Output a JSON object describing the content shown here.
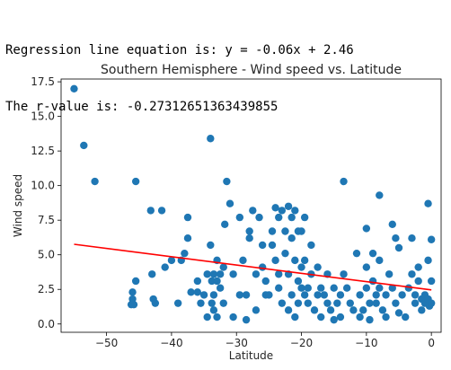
{
  "output": {
    "line1": "Regression line equation is: y = -0.06x + 2.46",
    "line2": "The r-value is: -0.27312651363439855"
  },
  "chart_data": {
    "type": "scatter",
    "title": "Southern Hemisphere - Wind speed vs. Latitude",
    "xlabel": "Latitude",
    "ylabel": "Wind speed",
    "xlim": [
      -57,
      1.5
    ],
    "ylim": [
      -0.6,
      17.7
    ],
    "xticks": [
      -50,
      -40,
      -30,
      -20,
      -10,
      0
    ],
    "xtick_labels": [
      "−50",
      "−40",
      "−30",
      "−20",
      "−10",
      "0"
    ],
    "yticks": [
      0.0,
      2.5,
      5.0,
      7.5,
      10.0,
      12.5,
      15.0,
      17.5
    ],
    "ytick_labels": [
      "0.0",
      "2.5",
      "5.0",
      "7.5",
      "10.0",
      "12.5",
      "15.0",
      "17.5"
    ],
    "grid": false,
    "point_color": "#1f77b4",
    "line_color": "#ff0000",
    "regression": {
      "slope": -0.06,
      "intercept": 2.46,
      "x_range": [
        -55,
        0
      ]
    },
    "points": [
      [
        -55,
        17.0
      ],
      [
        -53.5,
        12.9
      ],
      [
        -51.8,
        10.3
      ],
      [
        -45.5,
        10.3
      ],
      [
        -43.2,
        8.2
      ],
      [
        -41.5,
        8.2
      ],
      [
        -45.5,
        3.1
      ],
      [
        -46,
        2.3
      ],
      [
        -46,
        1.8
      ],
      [
        -46.2,
        1.4
      ],
      [
        -45.8,
        1.4
      ],
      [
        -43,
        3.6
      ],
      [
        -42.8,
        1.8
      ],
      [
        -42.5,
        1.5
      ],
      [
        -41,
        4.1
      ],
      [
        -40,
        4.6
      ],
      [
        -39,
        1.5
      ],
      [
        -38.5,
        4.6
      ],
      [
        -38,
        5.1
      ],
      [
        -37.5,
        7.7
      ],
      [
        -37.5,
        6.2
      ],
      [
        -37,
        2.3
      ],
      [
        -36,
        3.1
      ],
      [
        -36,
        2.3
      ],
      [
        -35.5,
        1.5
      ],
      [
        -35,
        2.1
      ],
      [
        -34.5,
        3.6
      ],
      [
        -34.5,
        0.5
      ],
      [
        -34,
        5.7
      ],
      [
        -34,
        13.4
      ],
      [
        -33.8,
        3.1
      ],
      [
        -33.8,
        1.5
      ],
      [
        -33.5,
        3.6
      ],
      [
        -33.5,
        2.1
      ],
      [
        -33.5,
        1.0
      ],
      [
        -33,
        4.6
      ],
      [
        -33,
        3.1
      ],
      [
        -33,
        0.5
      ],
      [
        -32.5,
        3.6
      ],
      [
        -32.5,
        2.6
      ],
      [
        -32,
        1.5
      ],
      [
        -32,
        4.1
      ],
      [
        -31.8,
        7.2
      ],
      [
        -31.5,
        10.3
      ],
      [
        -31,
        8.7
      ],
      [
        -30.5,
        3.6
      ],
      [
        -30.5,
        0.5
      ],
      [
        -29.5,
        7.7
      ],
      [
        -29.5,
        2.1
      ],
      [
        -29,
        4.6
      ],
      [
        -28.5,
        2.1
      ],
      [
        -28.5,
        0.3
      ],
      [
        -28,
        6.7
      ],
      [
        -28,
        6.2
      ],
      [
        -27.5,
        8.2
      ],
      [
        -27,
        3.6
      ],
      [
        -27,
        1.0
      ],
      [
        -26.5,
        7.7
      ],
      [
        -26,
        5.7
      ],
      [
        -26,
        4.1
      ],
      [
        -25.5,
        3.1
      ],
      [
        -25.5,
        2.1
      ],
      [
        -25,
        2.1
      ],
      [
        -24.5,
        5.7
      ],
      [
        -24.5,
        6.7
      ],
      [
        -24,
        4.6
      ],
      [
        -24,
        8.4
      ],
      [
        -23.5,
        7.7
      ],
      [
        -23.5,
        3.6
      ],
      [
        -23.5,
        2.6
      ],
      [
        -23,
        1.5
      ],
      [
        -23,
        8.2
      ],
      [
        -22.5,
        6.7
      ],
      [
        -22.5,
        5.1
      ],
      [
        -22,
        8.5
      ],
      [
        -22,
        3.6
      ],
      [
        -22,
        1.0
      ],
      [
        -21.5,
        7.7
      ],
      [
        -21.5,
        6.2
      ],
      [
        -21.5,
        2.1
      ],
      [
        -21,
        4.6
      ],
      [
        -21,
        8.2
      ],
      [
        -21,
        0.5
      ],
      [
        -20.5,
        6.7
      ],
      [
        -20.5,
        3.1
      ],
      [
        -20.5,
        1.5
      ],
      [
        -20,
        6.7
      ],
      [
        -20,
        4.1
      ],
      [
        -20,
        2.6
      ],
      [
        -19.5,
        7.7
      ],
      [
        -19.5,
        4.6
      ],
      [
        -19.5,
        2.1
      ],
      [
        -19,
        2.6
      ],
      [
        -19,
        1.5
      ],
      [
        -18.5,
        5.7
      ],
      [
        -18.5,
        3.6
      ],
      [
        -18,
        1.0
      ],
      [
        -17.5,
        2.1
      ],
      [
        -17.5,
        4.1
      ],
      [
        -17,
        2.6
      ],
      [
        -17,
        0.5
      ],
      [
        -16.5,
        2.1
      ],
      [
        -16,
        3.6
      ],
      [
        -16,
        1.5
      ],
      [
        -15.5,
        1.0
      ],
      [
        -15,
        2.6
      ],
      [
        -15,
        0.3
      ],
      [
        -14.5,
        1.5
      ],
      [
        -14,
        2.1
      ],
      [
        -14,
        0.5
      ],
      [
        -13.5,
        3.6
      ],
      [
        -13.5,
        10.3
      ],
      [
        -13,
        2.6
      ],
      [
        -12.5,
        1.5
      ],
      [
        -12,
        1.0
      ],
      [
        -11.5,
        5.1
      ],
      [
        -11,
        2.1
      ],
      [
        -11,
        0.5
      ],
      [
        -10.5,
        1.0
      ],
      [
        -10,
        6.9
      ],
      [
        -10,
        4.1
      ],
      [
        -10,
        2.6
      ],
      [
        -9.5,
        1.5
      ],
      [
        -9.5,
        0.3
      ],
      [
        -9,
        5.1
      ],
      [
        -9,
        3.1
      ],
      [
        -8.5,
        2.1
      ],
      [
        -8.5,
        1.5
      ],
      [
        -8,
        9.3
      ],
      [
        -8,
        4.6
      ],
      [
        -8,
        2.6
      ],
      [
        -7.5,
        1.0
      ],
      [
        -7,
        2.1
      ],
      [
        -7,
        0.5
      ],
      [
        -6.5,
        3.6
      ],
      [
        -6,
        7.2
      ],
      [
        -6,
        2.6
      ],
      [
        -5.5,
        6.2
      ],
      [
        -5.5,
        1.5
      ],
      [
        -5,
        5.5
      ],
      [
        -5,
        0.8
      ],
      [
        -4.5,
        2.1
      ],
      [
        -4,
        0.5
      ],
      [
        -3.5,
        2.6
      ],
      [
        -3,
        6.2
      ],
      [
        -3,
        3.6
      ],
      [
        -2.5,
        2.1
      ],
      [
        -2.5,
        1.5
      ],
      [
        -2,
        4.1
      ],
      [
        -2,
        3.1
      ],
      [
        -1.5,
        1.8
      ],
      [
        -1.5,
        1.0
      ],
      [
        -1,
        2.1
      ],
      [
        -1,
        1.5
      ],
      [
        -0.5,
        8.7
      ],
      [
        -0.5,
        4.6
      ],
      [
        -0.5,
        1.8
      ],
      [
        -0.3,
        1.3
      ],
      [
        0,
        6.1
      ],
      [
        0,
        3.1
      ],
      [
        0,
        1.5
      ]
    ]
  }
}
